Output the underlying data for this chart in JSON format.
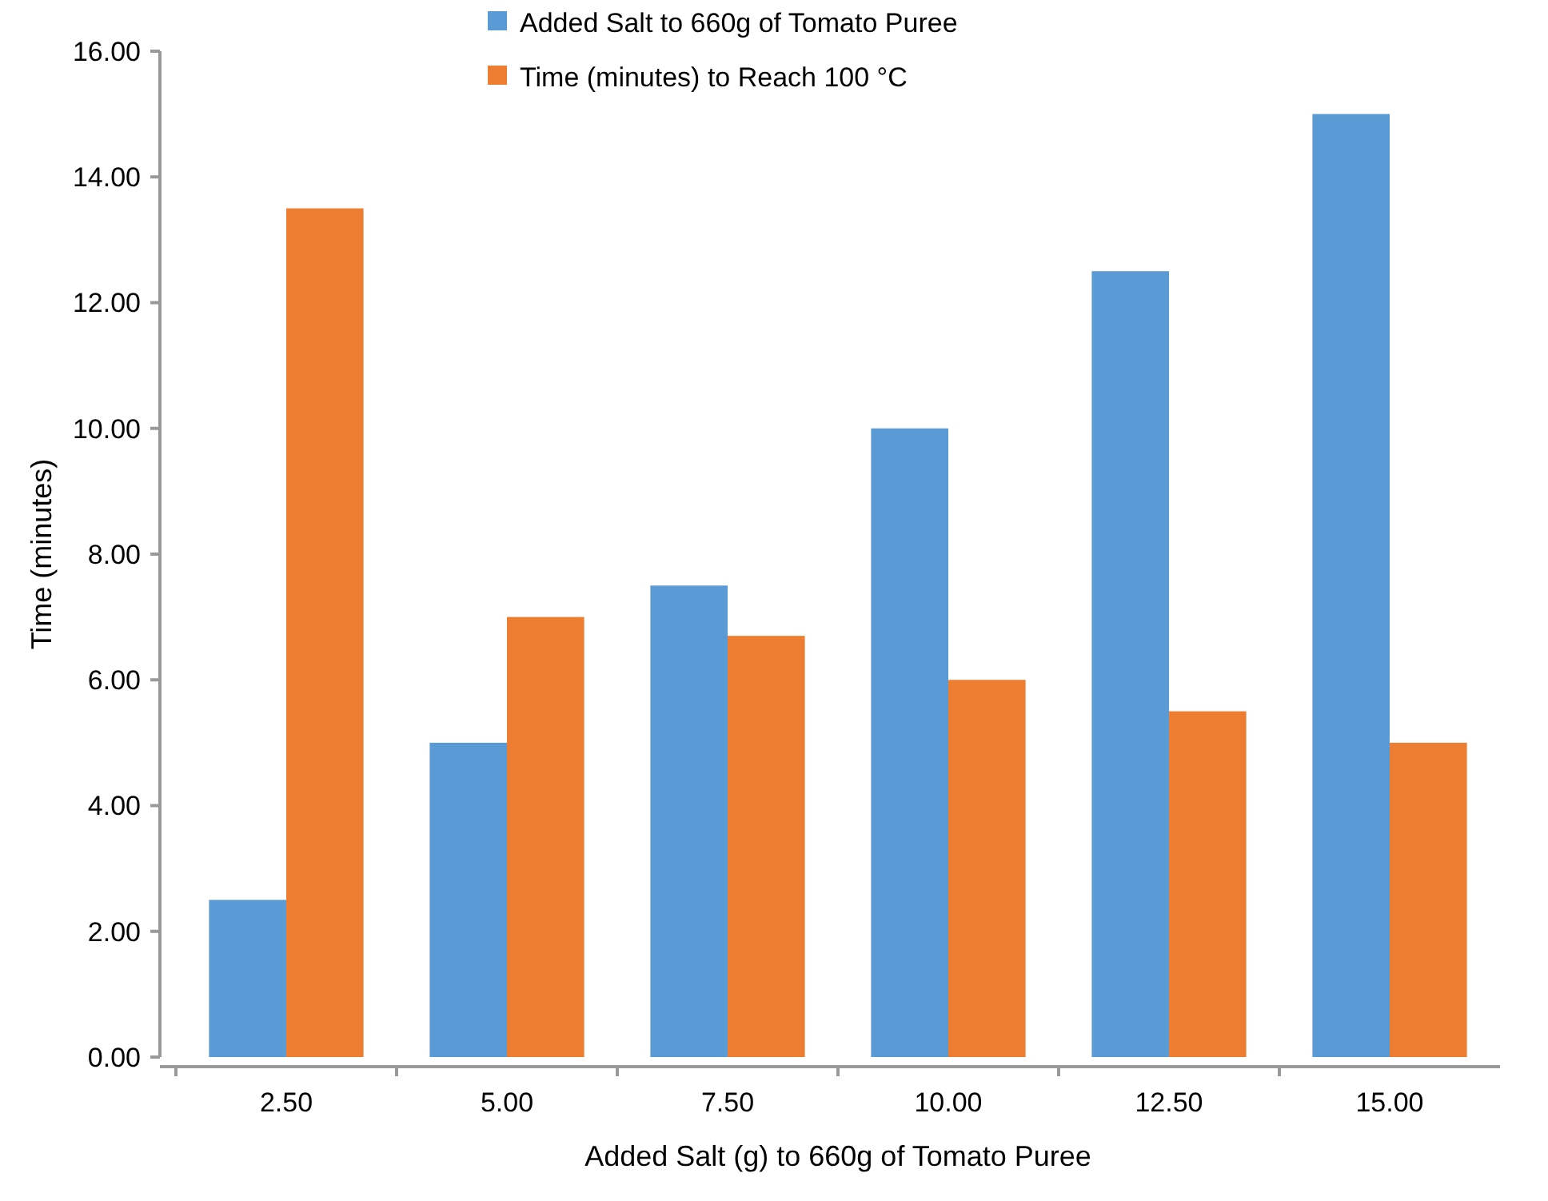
{
  "chart_data": {
    "type": "bar",
    "xlabel": "Added Salt (g) to 660g of Tomato Puree",
    "ylabel": "Time (minutes)",
    "categories": [
      "2.50",
      "5.00",
      "7.50",
      "10.00",
      "12.50",
      "15.00"
    ],
    "series": [
      {
        "name": "Added Salt to 660g of Tomato Puree",
        "color": "#5b9bd5",
        "values": [
          2.5,
          5.0,
          7.5,
          10.0,
          12.5,
          15.0
        ]
      },
      {
        "name": "Time (minutes) to Reach 100 °C",
        "color": "#ed7d31",
        "values": [
          13.5,
          7.0,
          6.7,
          6.0,
          5.5,
          5.0
        ]
      }
    ],
    "ylim": [
      0,
      16
    ],
    "yticks": [
      {
        "value": 0,
        "label": "0.00"
      },
      {
        "value": 2,
        "label": "2.00"
      },
      {
        "value": 4,
        "label": "4.00"
      },
      {
        "value": 6,
        "label": "6.00"
      },
      {
        "value": 8,
        "label": "8.00"
      },
      {
        "value": 10,
        "label": "10.00"
      },
      {
        "value": 12,
        "label": "12.00"
      },
      {
        "value": 14,
        "label": "14.00"
      },
      {
        "value": 16,
        "label": "16.00"
      }
    ],
    "grid": false,
    "legend": "top"
  }
}
